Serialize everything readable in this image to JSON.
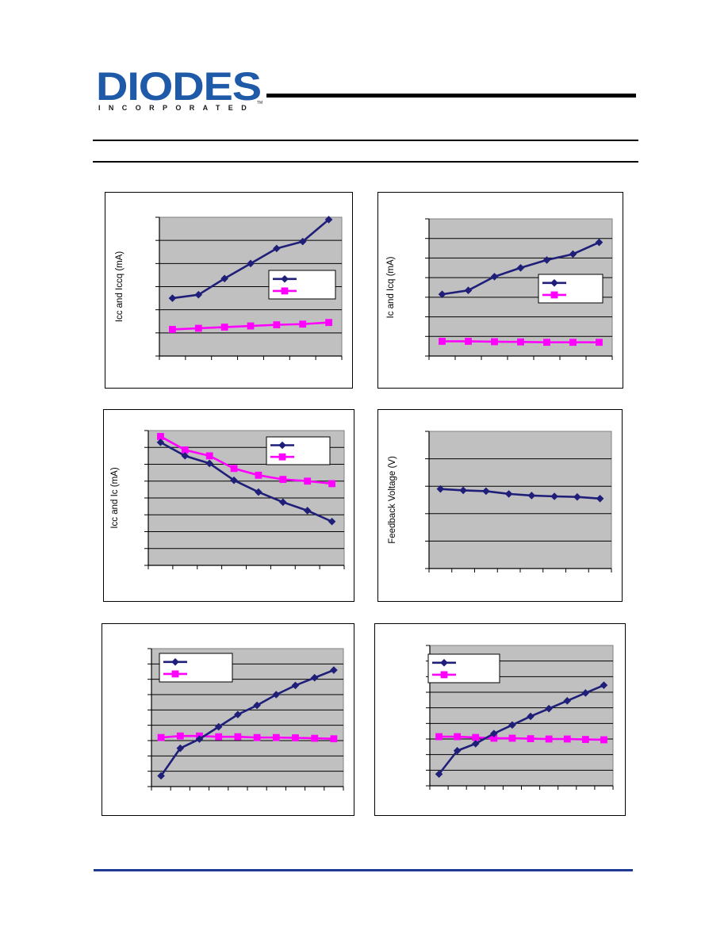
{
  "brand": {
    "logo_main": "DIODES",
    "logo_sub": "INCORPORATED",
    "logo_tm": "TM"
  },
  "colors": {
    "series_dark": "#1f1f7a",
    "series_pink": "#ff00ff",
    "plot_bg": "#c0c0c0",
    "brand_blue": "#1f5aa8",
    "footer_rule": "#1f3a93"
  },
  "chart_data": [
    {
      "type": "line",
      "ylabel": "Icc and Iccq (mA)",
      "xlabel": "",
      "ylim": [
        0,
        6
      ],
      "grid": true,
      "legend": "right",
      "x": [
        1,
        2,
        3,
        4,
        5,
        6,
        7
      ],
      "series": [
        {
          "values": [
            2.5,
            2.65,
            3.35,
            4.0,
            4.65,
            4.95,
            5.9
          ]
        },
        {
          "values": [
            1.15,
            1.2,
            1.25,
            1.3,
            1.35,
            1.38,
            1.45
          ]
        }
      ]
    },
    {
      "type": "line",
      "ylabel": "Ic and Icq (mA)",
      "xlabel": "",
      "ylim": [
        0,
        7
      ],
      "grid": true,
      "legend": "right",
      "x": [
        1,
        2,
        3,
        4,
        5,
        6,
        7
      ],
      "series": [
        {
          "values": [
            3.15,
            3.35,
            4.05,
            4.5,
            4.9,
            5.2,
            5.8
          ]
        },
        {
          "values": [
            0.75,
            0.75,
            0.73,
            0.72,
            0.7,
            0.7,
            0.7
          ]
        }
      ]
    },
    {
      "type": "line",
      "ylabel": "Icc and Ic (mA)",
      "xlabel": "",
      "ylim": [
        0,
        8
      ],
      "grid": true,
      "legend": "top-right",
      "x": [
        1,
        2,
        3,
        4,
        5,
        6,
        7,
        8
      ],
      "series": [
        {
          "values": [
            7.3,
            6.5,
            6.05,
            5.05,
            4.35,
            3.75,
            3.25,
            2.6
          ]
        },
        {
          "values": [
            7.65,
            6.85,
            6.5,
            5.75,
            5.35,
            5.1,
            5.0,
            4.85
          ]
        }
      ]
    },
    {
      "type": "line",
      "ylabel": "Feedback Voltage (V)",
      "xlabel": "",
      "ylim": [
        0,
        5
      ],
      "grid": true,
      "legend": "none",
      "x": [
        1,
        2,
        3,
        4,
        5,
        6,
        7,
        8
      ],
      "series": [
        {
          "values": [
            2.9,
            2.85,
            2.82,
            2.72,
            2.66,
            2.63,
            2.61,
            2.55
          ]
        }
      ]
    },
    {
      "type": "line",
      "ylabel": "",
      "xlabel": "",
      "ylim": [
        0,
        9
      ],
      "grid": true,
      "legend": "top-left",
      "x": [
        1,
        2,
        3,
        4,
        5,
        6,
        7,
        8,
        9,
        10
      ],
      "series": [
        {
          "values": [
            0.7,
            2.5,
            3.1,
            3.9,
            4.7,
            5.3,
            6.0,
            6.6,
            7.1,
            7.6
          ]
        },
        {
          "values": [
            3.2,
            3.3,
            3.3,
            3.25,
            3.25,
            3.2,
            3.2,
            3.18,
            3.15,
            3.12
          ]
        }
      ]
    },
    {
      "type": "line",
      "ylabel": "",
      "xlabel": "",
      "ylim": [
        0,
        9
      ],
      "grid": true,
      "legend": "top-left",
      "x": [
        1,
        2,
        3,
        4,
        5,
        6,
        7,
        8,
        9,
        10
      ],
      "series": [
        {
          "values": [
            0.75,
            2.25,
            2.7,
            3.35,
            3.9,
            4.45,
            4.95,
            5.45,
            5.95,
            6.45
          ]
        },
        {
          "values": [
            3.15,
            3.15,
            3.1,
            3.05,
            3.05,
            3.02,
            3.0,
            3.0,
            2.97,
            2.95
          ]
        }
      ]
    }
  ]
}
